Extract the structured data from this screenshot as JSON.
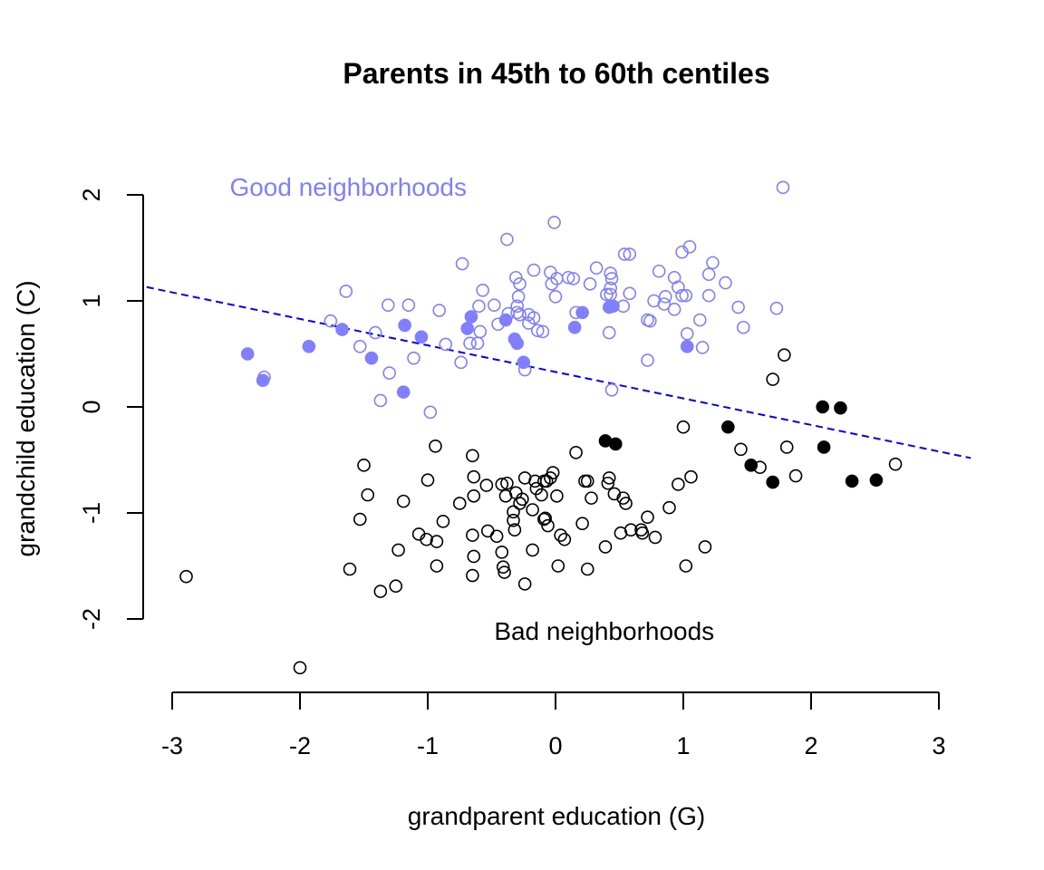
{
  "chart_data": {
    "type": "scatter",
    "title": "Parents in 45th to 60th centiles",
    "xlabel": "grandparent education (G)",
    "ylabel": "grandchild education (C)",
    "xlim": [
      -3.2,
      3.25
    ],
    "ylim": [
      -2.7,
      2.2
    ],
    "x_ticks": [
      -3,
      -2,
      -1,
      0,
      1,
      2,
      3
    ],
    "y_ticks": [
      -2,
      -1,
      0,
      1,
      2
    ],
    "x_tick_labels": [
      "-3",
      "-2",
      "-1",
      "0",
      "1",
      "2",
      "3"
    ],
    "y_tick_labels": [
      "-2",
      "-1",
      "0",
      "1",
      "2"
    ],
    "grid": false,
    "colors": {
      "good": "#7f7fff",
      "bad": "#000000",
      "line": "#0000ee"
    },
    "annotations": [
      {
        "text": "Good neighborhoods",
        "x": -2.55,
        "y": 2.07,
        "color": "#7f7fff"
      },
      {
        "text": "Bad neighborhoods",
        "x": -0.48,
        "y": -2.12,
        "color": "#000000"
      }
    ],
    "regression_line": {
      "slope": -0.25,
      "intercept": 0.33,
      "style": "dashed"
    },
    "series": [
      {
        "name": "Good neighborhoods",
        "color": "#7f7fff",
        "filled": false,
        "points": [
          [
            1.78,
            2.07
          ],
          [
            -0.01,
            1.74
          ],
          [
            -0.38,
            1.58
          ],
          [
            1.05,
            1.51
          ],
          [
            0.54,
            1.44
          ],
          [
            0.58,
            1.44
          ],
          [
            0.99,
            1.46
          ],
          [
            -0.73,
            1.35
          ],
          [
            1.23,
            1.36
          ],
          [
            0.32,
            1.31
          ],
          [
            -0.17,
            1.29
          ],
          [
            0.81,
            1.28
          ],
          [
            -0.04,
            1.27
          ],
          [
            0.43,
            1.26
          ],
          [
            0.1,
            1.22
          ],
          [
            0.14,
            1.21
          ],
          [
            -0.31,
            1.22
          ],
          [
            0.01,
            1.21
          ],
          [
            0.44,
            1.21
          ],
          [
            0.93,
            1.22
          ],
          [
            1.2,
            1.25
          ],
          [
            -0.28,
            1.16
          ],
          [
            -0.03,
            1.16
          ],
          [
            0.27,
            1.16
          ],
          [
            0.96,
            1.13
          ],
          [
            1.33,
            1.17
          ],
          [
            -0.57,
            1.1
          ],
          [
            0.43,
            1.12
          ],
          [
            -1.64,
            1.09
          ],
          [
            0.58,
            1.07
          ],
          [
            0.43,
            1.06
          ],
          [
            0.4,
            1.06
          ],
          [
            0.99,
            1.05
          ],
          [
            1.02,
            1.05
          ],
          [
            -0.29,
            1.04
          ],
          [
            0.0,
            1.04
          ],
          [
            1.2,
            1.05
          ],
          [
            0.86,
            1.04
          ],
          [
            -0.48,
            0.96
          ],
          [
            -0.6,
            0.95
          ],
          [
            -1.31,
            0.96
          ],
          [
            -1.15,
            0.96
          ],
          [
            -0.3,
            0.95
          ],
          [
            1.43,
            0.94
          ],
          [
            0.53,
            0.95
          ],
          [
            0.85,
            0.97
          ],
          [
            0.77,
            1.0
          ],
          [
            0.93,
            0.92
          ],
          [
            1.73,
            0.93
          ],
          [
            -0.3,
            0.89
          ],
          [
            -0.37,
            0.88
          ],
          [
            -0.91,
            0.91
          ],
          [
            0.16,
            0.89
          ],
          [
            -0.21,
            0.87
          ],
          [
            -0.28,
            0.87
          ],
          [
            -0.17,
            0.84
          ],
          [
            -0.21,
            0.79
          ],
          [
            0.72,
            0.82
          ],
          [
            0.74,
            0.81
          ],
          [
            1.13,
            0.82
          ],
          [
            -0.45,
            0.78
          ],
          [
            -1.76,
            0.81
          ],
          [
            -0.14,
            0.72
          ],
          [
            -0.1,
            0.71
          ],
          [
            0.42,
            0.7
          ],
          [
            1.47,
            0.75
          ],
          [
            -0.59,
            0.71
          ],
          [
            -1.41,
            0.7
          ],
          [
            -0.67,
            0.6
          ],
          [
            -0.61,
            0.6
          ],
          [
            1.03,
            0.69
          ],
          [
            -1.53,
            0.57
          ],
          [
            -0.86,
            0.59
          ],
          [
            1.15,
            0.56
          ],
          [
            -1.11,
            0.46
          ],
          [
            -0.74,
            0.42
          ],
          [
            0.72,
            0.44
          ],
          [
            -0.24,
            0.35
          ],
          [
            -1.3,
            0.32
          ],
          [
            -2.28,
            0.28
          ],
          [
            0.44,
            0.16
          ],
          [
            -1.37,
            0.06
          ],
          [
            -0.98,
            -0.05
          ]
        ]
      },
      {
        "name": "Good neighborhoods (parents in 45th-60th centiles)",
        "color": "#7f7fff",
        "filled": true,
        "points": [
          [
            -2.41,
            0.5
          ],
          [
            -1.93,
            0.57
          ],
          [
            -2.29,
            0.25
          ],
          [
            -1.67,
            0.73
          ],
          [
            -1.44,
            0.46
          ],
          [
            -1.18,
            0.77
          ],
          [
            -1.05,
            0.66
          ],
          [
            -1.19,
            0.14
          ],
          [
            -0.66,
            0.85
          ],
          [
            -0.69,
            0.74
          ],
          [
            -0.39,
            0.82
          ],
          [
            -0.32,
            0.64
          ],
          [
            -0.3,
            0.6
          ],
          [
            -0.25,
            0.42
          ],
          [
            0.21,
            0.89
          ],
          [
            0.15,
            0.75
          ],
          [
            0.42,
            0.94
          ],
          [
            0.45,
            0.95
          ],
          [
            1.03,
            0.57
          ]
        ]
      },
      {
        "name": "Bad neighborhoods",
        "color": "#000000",
        "filled": false,
        "points": [
          [
            1.79,
            0.49
          ],
          [
            1.7,
            0.26
          ],
          [
            1.0,
            -0.19
          ],
          [
            1.81,
            -0.38
          ],
          [
            1.45,
            -0.4
          ],
          [
            0.16,
            -0.43
          ],
          [
            -0.94,
            -0.37
          ],
          [
            -0.65,
            -0.46
          ],
          [
            -1.5,
            -0.55
          ],
          [
            2.66,
            -0.54
          ],
          [
            1.6,
            -0.57
          ],
          [
            1.88,
            -0.65
          ],
          [
            1.06,
            -0.66
          ],
          [
            -0.64,
            -0.66
          ],
          [
            -0.02,
            -0.62
          ],
          [
            -1.0,
            -0.69
          ],
          [
            -0.04,
            -0.67
          ],
          [
            -0.07,
            -0.7
          ],
          [
            0.42,
            -0.67
          ],
          [
            0.41,
            -0.72
          ],
          [
            -0.54,
            -0.74
          ],
          [
            -0.42,
            -0.73
          ],
          [
            -0.38,
            -0.72
          ],
          [
            -0.24,
            -0.67
          ],
          [
            -0.16,
            -0.7
          ],
          [
            -0.09,
            -0.7
          ],
          [
            0.23,
            -0.7
          ],
          [
            0.25,
            -0.7
          ],
          [
            0.96,
            -0.73
          ],
          [
            -0.31,
            -0.81
          ],
          [
            -0.15,
            -0.77
          ],
          [
            -0.64,
            -0.84
          ],
          [
            -0.39,
            -0.84
          ],
          [
            -0.26,
            -0.87
          ],
          [
            0.01,
            -0.84
          ],
          [
            -0.11,
            -0.83
          ],
          [
            0.46,
            -0.82
          ],
          [
            0.28,
            -0.86
          ],
          [
            0.53,
            -0.86
          ],
          [
            0.55,
            -0.91
          ],
          [
            -1.47,
            -0.83
          ],
          [
            -1.19,
            -0.89
          ],
          [
            -0.75,
            -0.91
          ],
          [
            -0.28,
            -0.91
          ],
          [
            -0.33,
            -0.99
          ],
          [
            0.89,
            -0.95
          ],
          [
            -0.18,
            -0.97
          ],
          [
            -0.08,
            -1.05
          ],
          [
            -1.53,
            -1.06
          ],
          [
            -0.88,
            -1.08
          ],
          [
            -0.33,
            -1.07
          ],
          [
            -0.06,
            -1.12
          ],
          [
            -0.09,
            -1.06
          ],
          [
            0.21,
            -1.1
          ],
          [
            0.72,
            -1.04
          ],
          [
            -0.53,
            -1.17
          ],
          [
            -0.32,
            -1.16
          ],
          [
            0.51,
            -1.19
          ],
          [
            0.59,
            -1.16
          ],
          [
            0.67,
            -1.16
          ],
          [
            0.68,
            -1.19
          ],
          [
            -1.07,
            -1.2
          ],
          [
            -1.01,
            -1.25
          ],
          [
            0.04,
            -1.21
          ],
          [
            0.07,
            -1.25
          ],
          [
            -0.46,
            -1.22
          ],
          [
            -0.65,
            -1.21
          ],
          [
            0.78,
            -1.23
          ],
          [
            -0.93,
            -1.27
          ],
          [
            -0.18,
            -1.35
          ],
          [
            -1.23,
            -1.35
          ],
          [
            0.39,
            -1.32
          ],
          [
            1.17,
            -1.32
          ],
          [
            -0.42,
            -1.37
          ],
          [
            -0.64,
            -1.41
          ],
          [
            -0.93,
            -1.5
          ],
          [
            -0.41,
            -1.51
          ],
          [
            0.02,
            -1.5
          ],
          [
            0.25,
            -1.53
          ],
          [
            1.02,
            -1.5
          ],
          [
            -1.61,
            -1.53
          ],
          [
            -0.4,
            -1.56
          ],
          [
            -0.65,
            -1.59
          ],
          [
            -2.89,
            -1.6
          ],
          [
            -0.24,
            -1.67
          ],
          [
            -1.25,
            -1.69
          ],
          [
            -1.37,
            -1.74
          ],
          [
            -2.0,
            -2.46
          ]
        ]
      },
      {
        "name": "Bad neighborhoods (parents in 45th-60th centiles)",
        "color": "#000000",
        "filled": true,
        "points": [
          [
            2.09,
            0.0
          ],
          [
            2.23,
            -0.01
          ],
          [
            1.35,
            -0.19
          ],
          [
            0.39,
            -0.32
          ],
          [
            0.47,
            -0.35
          ],
          [
            2.1,
            -0.38
          ],
          [
            1.53,
            -0.55
          ],
          [
            1.7,
            -0.71
          ],
          [
            2.32,
            -0.7
          ],
          [
            2.51,
            -0.69
          ]
        ]
      }
    ]
  }
}
